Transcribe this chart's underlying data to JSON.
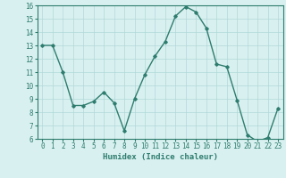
{
  "x": [
    0,
    1,
    2,
    3,
    4,
    5,
    6,
    7,
    8,
    9,
    10,
    11,
    12,
    13,
    14,
    15,
    16,
    17,
    18,
    19,
    20,
    21,
    22,
    23
  ],
  "y": [
    13,
    13,
    11,
    8.5,
    8.5,
    8.8,
    9.5,
    8.7,
    6.6,
    9.0,
    10.8,
    12.2,
    13.3,
    15.2,
    15.9,
    15.5,
    14.3,
    11.6,
    11.4,
    8.9,
    6.3,
    5.8,
    6.1,
    8.3
  ],
  "line_color": "#2e7d6e",
  "marker": "D",
  "marker_size": 1.8,
  "bg_color": "#d9f0f0",
  "grid_color": "#b0d8d8",
  "xlabel": "Humidex (Indice chaleur)",
  "ylim": [
    6,
    16
  ],
  "xlim": [
    -0.5,
    23.5
  ],
  "yticks": [
    6,
    7,
    8,
    9,
    10,
    11,
    12,
    13,
    14,
    15,
    16
  ],
  "xticks": [
    0,
    1,
    2,
    3,
    4,
    5,
    6,
    7,
    8,
    9,
    10,
    11,
    12,
    13,
    14,
    15,
    16,
    17,
    18,
    19,
    20,
    21,
    22,
    23
  ],
  "tick_fontsize": 5.5,
  "label_fontsize": 6.5,
  "line_width": 1.0
}
